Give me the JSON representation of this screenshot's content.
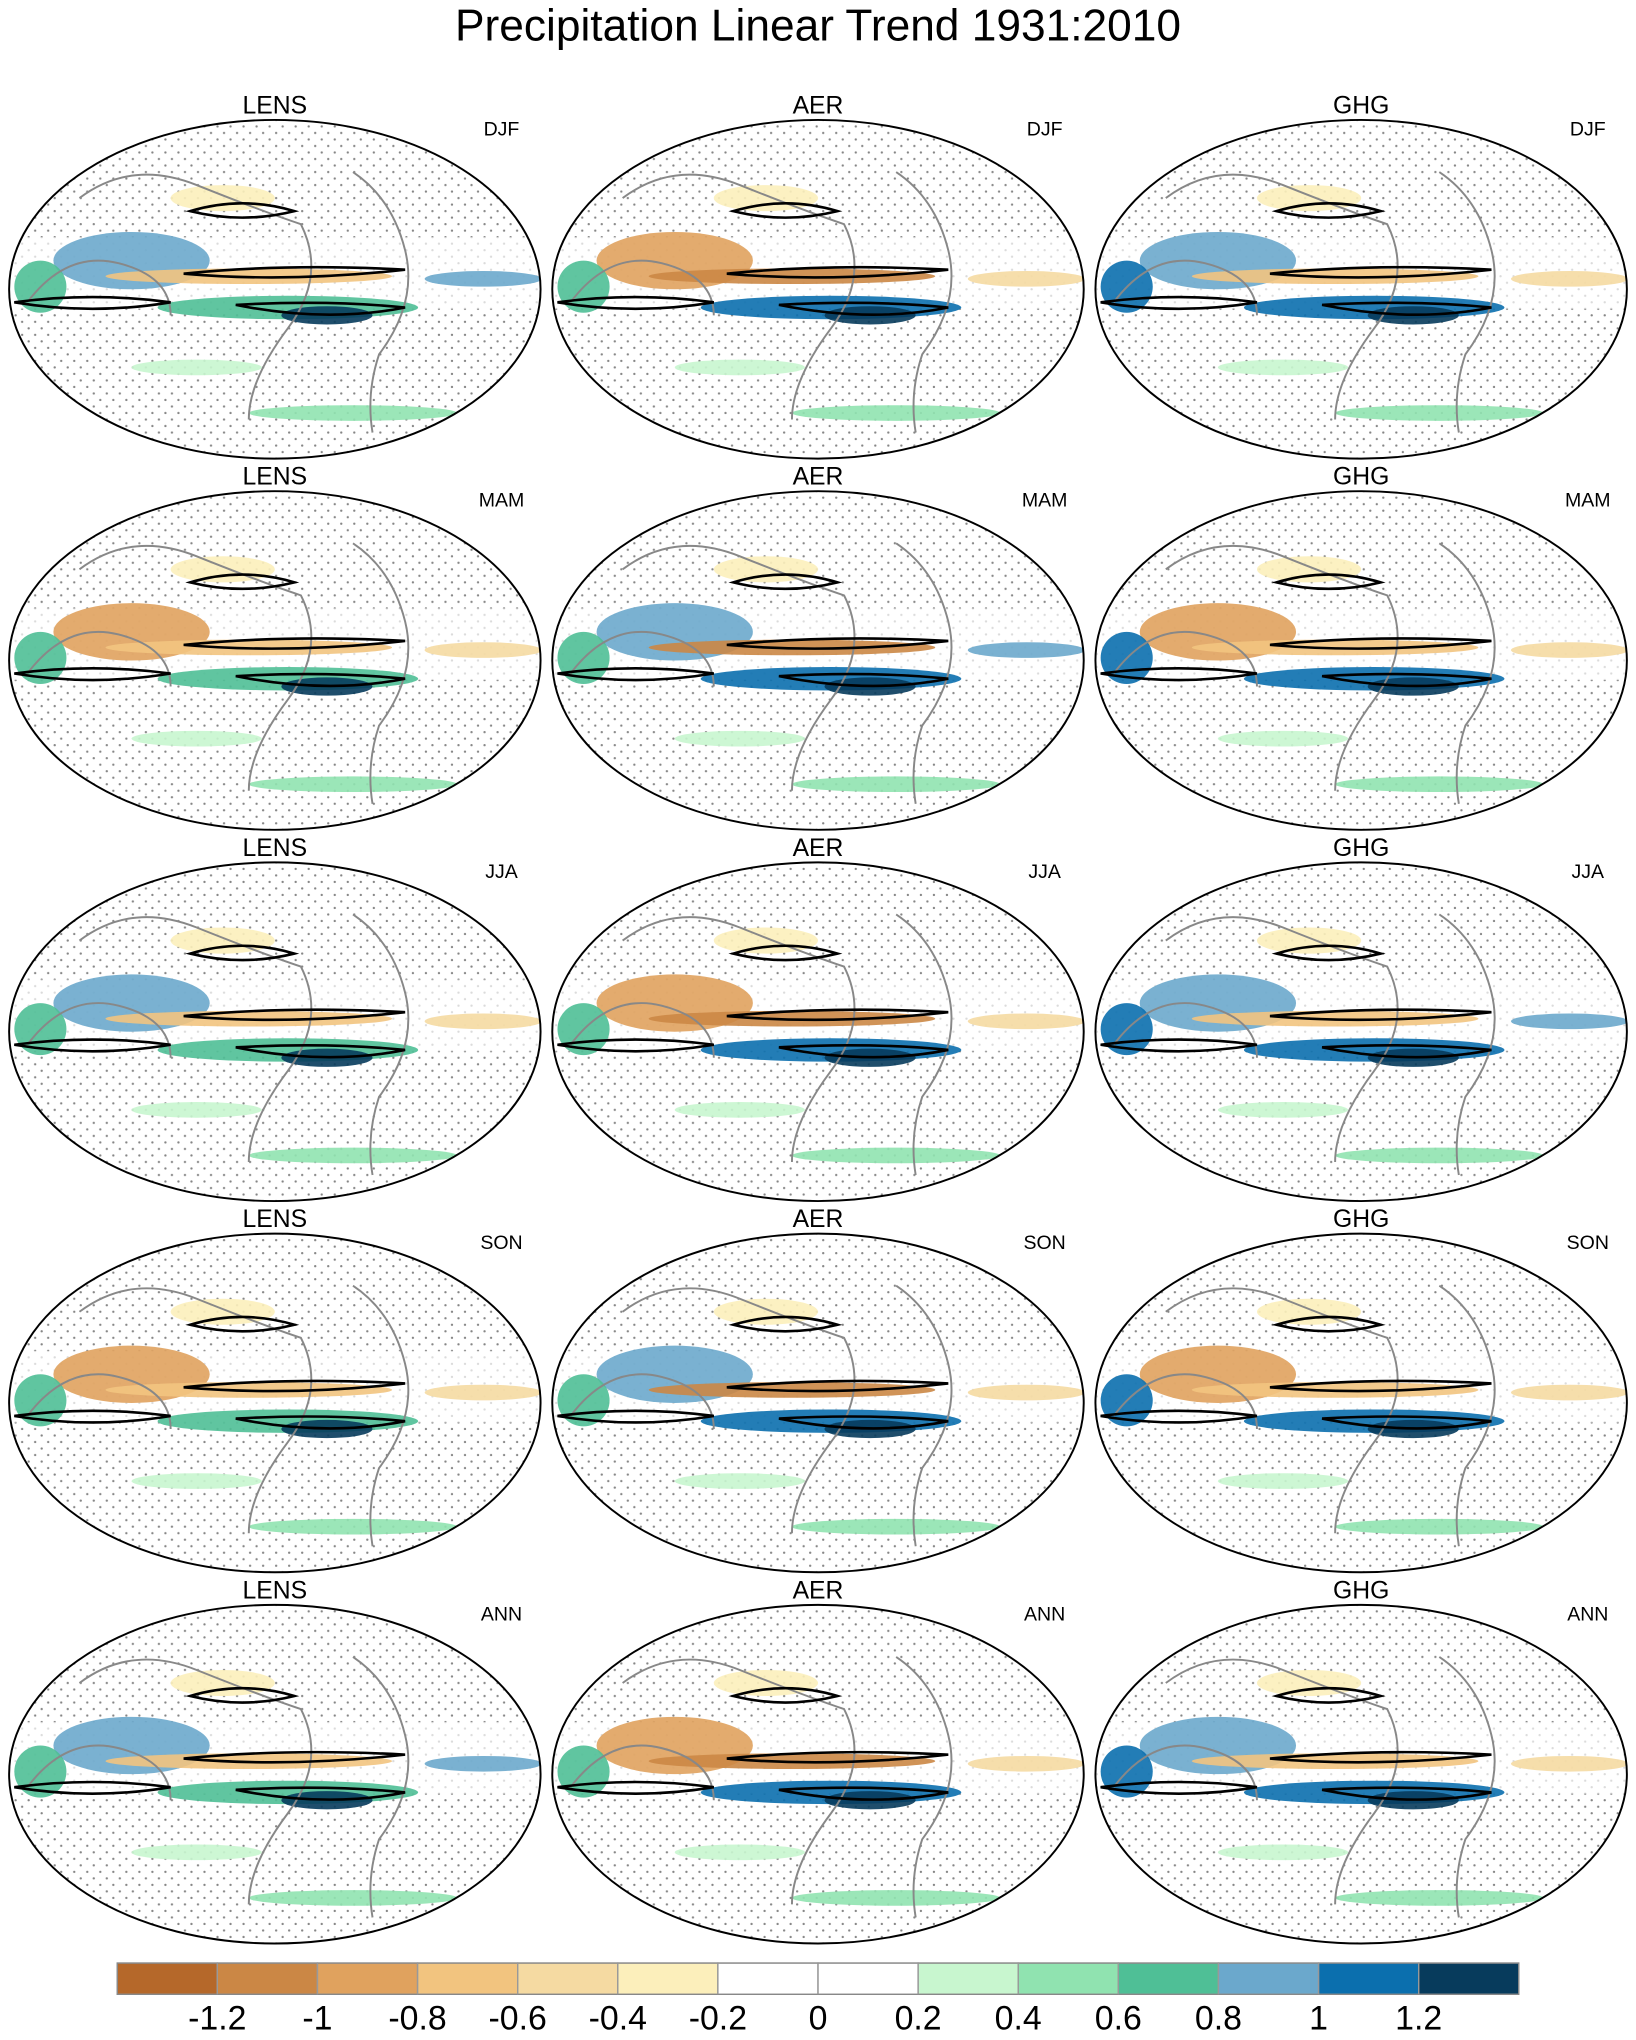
{
  "title": "Precipitation Linear Trend 1931:2010",
  "panels": [
    [
      {
        "model": "LENS",
        "season": "DJF"
      },
      {
        "model": "AER",
        "season": "DJF"
      },
      {
        "model": "GHG",
        "season": "DJF"
      }
    ],
    [
      {
        "model": "LENS",
        "season": "MAM"
      },
      {
        "model": "AER",
        "season": "MAM"
      },
      {
        "model": "GHG",
        "season": "MAM"
      }
    ],
    [
      {
        "model": "LENS",
        "season": "JJA"
      },
      {
        "model": "AER",
        "season": "JJA"
      },
      {
        "model": "GHG",
        "season": "JJA"
      }
    ],
    [
      {
        "model": "LENS",
        "season": "SON"
      },
      {
        "model": "AER",
        "season": "SON"
      },
      {
        "model": "GHG",
        "season": "SON"
      }
    ],
    [
      {
        "model": "LENS",
        "season": "ANN"
      },
      {
        "model": "AER",
        "season": "ANN"
      },
      {
        "model": "GHG",
        "season": "ANN"
      }
    ]
  ],
  "colorbar": {
    "colors": [
      "#b5682a",
      "#cb8745",
      "#e0a25e",
      "#f2c47f",
      "#f5daa2",
      "#fcefbb",
      "#ffffff",
      "#ffffff",
      "#c8f6cf",
      "#90e3b0",
      "#4fbf96",
      "#6ba8cc",
      "#0b6fae",
      "#073b5c"
    ],
    "ticks": [
      -1.2,
      -1,
      -0.8,
      -0.6,
      -0.4,
      -0.2,
      0,
      0.2,
      0.4,
      0.6,
      0.8,
      1,
      1.2
    ]
  }
}
